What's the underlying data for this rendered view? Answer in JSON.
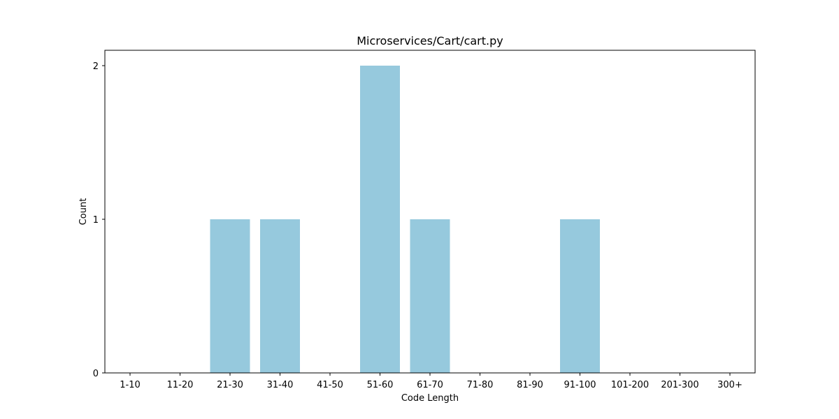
{
  "chart_data": {
    "type": "bar",
    "title": "Microservices/Cart/cart.py",
    "xlabel": "Code Length",
    "ylabel": "Count",
    "categories": [
      "1-10",
      "11-20",
      "21-30",
      "31-40",
      "41-50",
      "51-60",
      "61-70",
      "71-80",
      "81-90",
      "91-100",
      "101-200",
      "201-300",
      "300+"
    ],
    "values": [
      0,
      0,
      1,
      1,
      0,
      2,
      1,
      0,
      0,
      1,
      0,
      0,
      0
    ],
    "ylim": [
      0,
      2.1
    ],
    "yticks": [
      0,
      1,
      2
    ],
    "grid": false,
    "legend": "none",
    "bar_color": "#96c9dd"
  }
}
